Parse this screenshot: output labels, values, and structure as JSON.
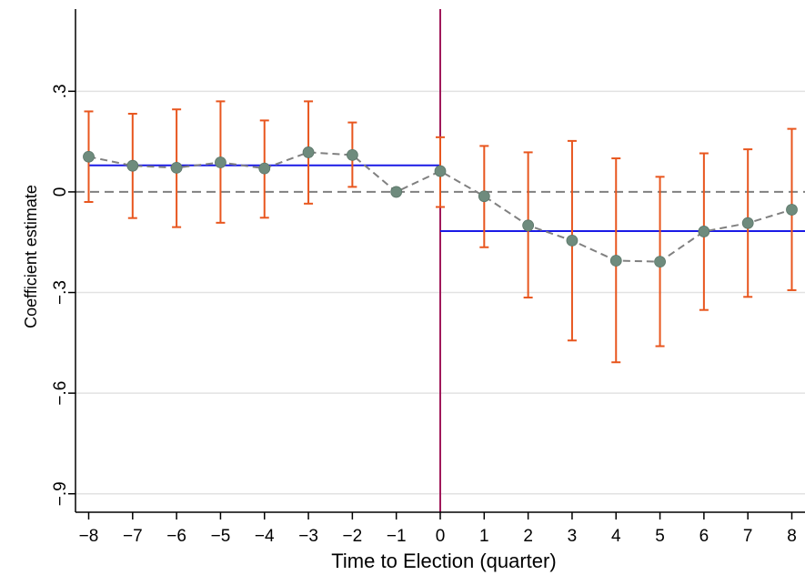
{
  "chart_data": {
    "type": "scatter",
    "title": "",
    "xlabel": "Time to Election (quarter)",
    "ylabel": "Coefficient estimate",
    "xlim": [
      -8.3,
      8.3
    ],
    "ylim": [
      -0.955,
      0.545
    ],
    "x_ticks": [
      -8,
      -7,
      -6,
      -5,
      -4,
      -3,
      -2,
      -1,
      0,
      1,
      2,
      3,
      4,
      5,
      6,
      7,
      8
    ],
    "x_tick_labels": [
      "−8",
      "−7",
      "−6",
      "−5",
      "−4",
      "−3",
      "−2",
      "−1",
      "0",
      "1",
      "2",
      "3",
      "4",
      "5",
      "6",
      "7",
      "8"
    ],
    "y_ticks": [
      -0.9,
      -0.6,
      -0.3,
      0,
      0.3
    ],
    "y_tick_labels": [
      "−.9",
      "−.6",
      "−.3",
      "0",
      ".3"
    ],
    "grid": true,
    "series": {
      "x": [
        -8,
        -7,
        -6,
        -5,
        -4,
        -3,
        -2,
        -1,
        0,
        1,
        2,
        3,
        4,
        5,
        6,
        7,
        8
      ],
      "estimate": [
        0.105,
        0.078,
        0.072,
        0.088,
        0.07,
        0.118,
        0.11,
        0.0,
        0.062,
        -0.013,
        -0.1,
        -0.145,
        -0.205,
        -0.208,
        -0.118,
        -0.093,
        -0.053
      ],
      "ci_lower": [
        -0.03,
        -0.078,
        -0.105,
        -0.092,
        -0.077,
        -0.035,
        0.015,
        null,
        -0.045,
        -0.165,
        -0.315,
        -0.443,
        -0.508,
        -0.46,
        -0.352,
        -0.313,
        -0.293
      ],
      "ci_upper": [
        0.24,
        0.233,
        0.246,
        0.27,
        0.213,
        0.27,
        0.207,
        null,
        0.163,
        0.137,
        0.118,
        0.152,
        0.1,
        0.045,
        0.115,
        0.127,
        0.188
      ]
    },
    "mean_lines": [
      {
        "x_start": -8,
        "x_end": 0,
        "y": 0.079
      },
      {
        "x_start": 0,
        "x_end": 8.3,
        "y": -0.117
      }
    ],
    "reference_lines": {
      "horizontal_y": 0,
      "vertical_x": 0
    },
    "colors": {
      "points": "#6e8b7d",
      "connector": "#808080",
      "error_bars": "#e8561e",
      "mean_lines": "#1a1ae6",
      "vertical_line": "#a0195a",
      "zero_line": "#808080",
      "grid": "#e2e2e2",
      "axis": "#000000"
    }
  }
}
